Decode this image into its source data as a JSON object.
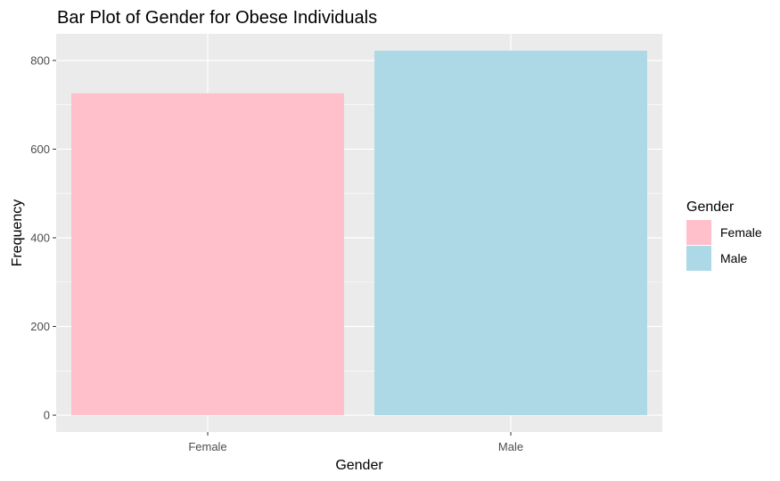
{
  "chart_data": {
    "type": "bar",
    "title": "Bar Plot of Gender for Obese Individuals",
    "xlabel": "Gender",
    "ylabel": "Frequency",
    "categories": [
      "Female",
      "Male"
    ],
    "values": [
      726,
      822
    ],
    "colors": [
      "#FFC0CB",
      "#ADD8E6"
    ],
    "ylim": [
      -38,
      860
    ],
    "yticks": [
      0,
      200,
      400,
      600,
      800
    ],
    "ytick_labels": [
      "0",
      "200",
      "400",
      "600",
      "800"
    ],
    "grid": true,
    "panel_background": "#EBEBEB",
    "grid_color": "#FFFFFF",
    "legend": {
      "title": "Gender",
      "position": "right",
      "items": [
        {
          "label": "Female",
          "color": "#FFC0CB"
        },
        {
          "label": "Male",
          "color": "#ADD8E6"
        }
      ]
    }
  }
}
